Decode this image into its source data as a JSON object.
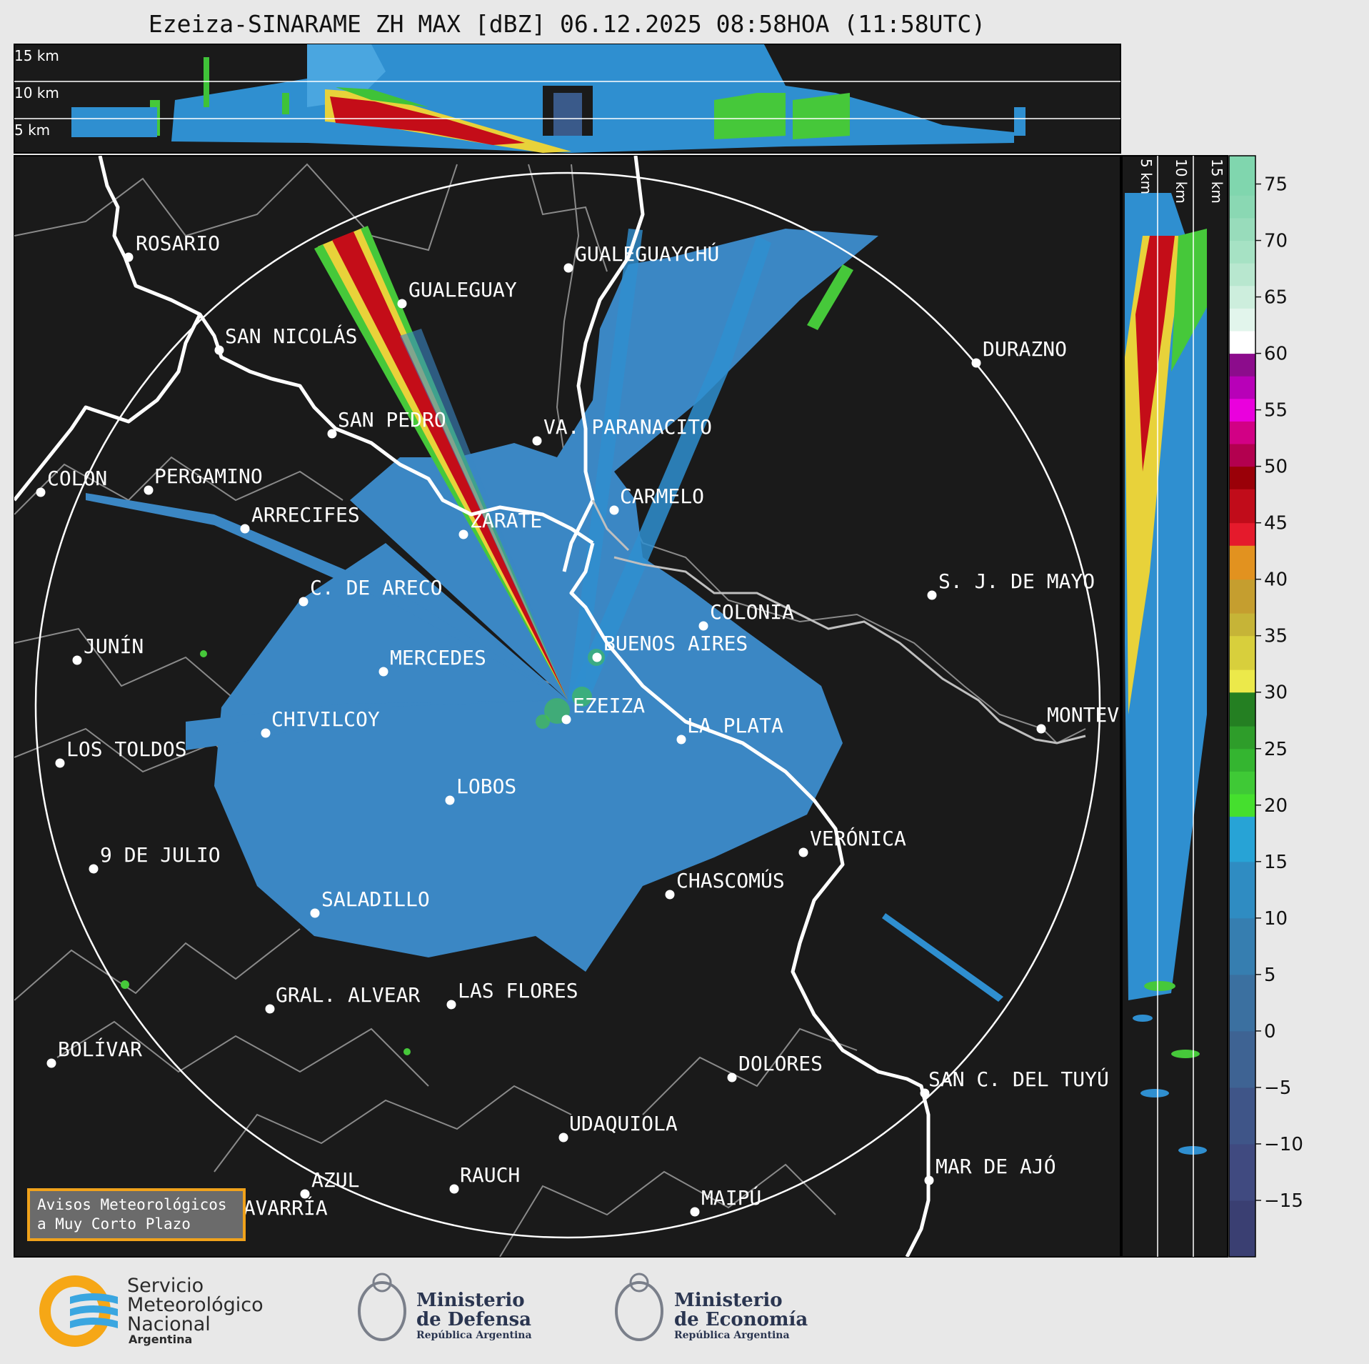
{
  "title": "Ezeiza-SINARAME ZH MAX [dBZ] 06.12.2025 08:58HOA (11:58UTC)",
  "top_section_labels": [
    "15 km",
    "10 km",
    "5 km"
  ],
  "right_section_labels": [
    "5 km",
    "10 km",
    "15 km"
  ],
  "colorbar": {
    "ticks": [
      "75",
      "70",
      "65",
      "60",
      "55",
      "50",
      "45",
      "40",
      "35",
      "30",
      "25",
      "20",
      "15",
      "10",
      "5",
      "0",
      "−5",
      "−10",
      "−15"
    ]
  },
  "cities": [
    {
      "name": "ROSARIO"
    },
    {
      "name": "GUALEGUAYCHÚ"
    },
    {
      "name": "GUALEGUAY"
    },
    {
      "name": "SAN NICOLÁS"
    },
    {
      "name": "DURAZNO"
    },
    {
      "name": "SAN PEDRO"
    },
    {
      "name": "VA. PARANACITO"
    },
    {
      "name": "COLON"
    },
    {
      "name": "PERGAMINO"
    },
    {
      "name": "CARMELO"
    },
    {
      "name": "ARRECIFES"
    },
    {
      "name": "ZÁRATE"
    },
    {
      "name": "S. J. DE MAYO"
    },
    {
      "name": "C. DE ARECO"
    },
    {
      "name": "COLONIA"
    },
    {
      "name": "JUNÍN"
    },
    {
      "name": "BUENOS AIRES"
    },
    {
      "name": "MERCEDES"
    },
    {
      "name": "EZEIZA"
    },
    {
      "name": "MONTEVIDEO"
    },
    {
      "name": "CHIVILCOY"
    },
    {
      "name": "LA PLATA"
    },
    {
      "name": "LOS TOLDOS"
    },
    {
      "name": "LOBOS"
    },
    {
      "name": "VERÓNICA"
    },
    {
      "name": "9 DE JULIO"
    },
    {
      "name": "CHASCOMÚS"
    },
    {
      "name": "SALADILLO"
    },
    {
      "name": "GRAL. ALVEAR"
    },
    {
      "name": "LAS FLORES"
    },
    {
      "name": "BOLÍVAR"
    },
    {
      "name": "DOLORES"
    },
    {
      "name": "SAN C. DEL TUYÚ"
    },
    {
      "name": "UDAQUIOLA"
    },
    {
      "name": "MAR DE AJÓ"
    },
    {
      "name": "AZUL"
    },
    {
      "name": "RAUCH"
    },
    {
      "name": "MAIPÚ"
    },
    {
      "name": "OLAVARRÍA"
    }
  ],
  "notice": {
    "line1": "Avisos Meteorológicos",
    "line2": "a Muy Corto Plazo"
  },
  "logos": {
    "smn": [
      "Servicio",
      "Meteorológico",
      "Nacional",
      "Argentina"
    ],
    "defensa": [
      "Ministerio",
      "de Defensa",
      "República Argentina"
    ],
    "economia": [
      "Ministerio",
      "de Economía",
      "República Argentina"
    ]
  },
  "colors": {
    "background": "#1a1a1a",
    "echo_weak": "#3b87c4",
    "echo_green": "#46c83a",
    "echo_red": "#c40d18",
    "ring": "#ffffff"
  }
}
